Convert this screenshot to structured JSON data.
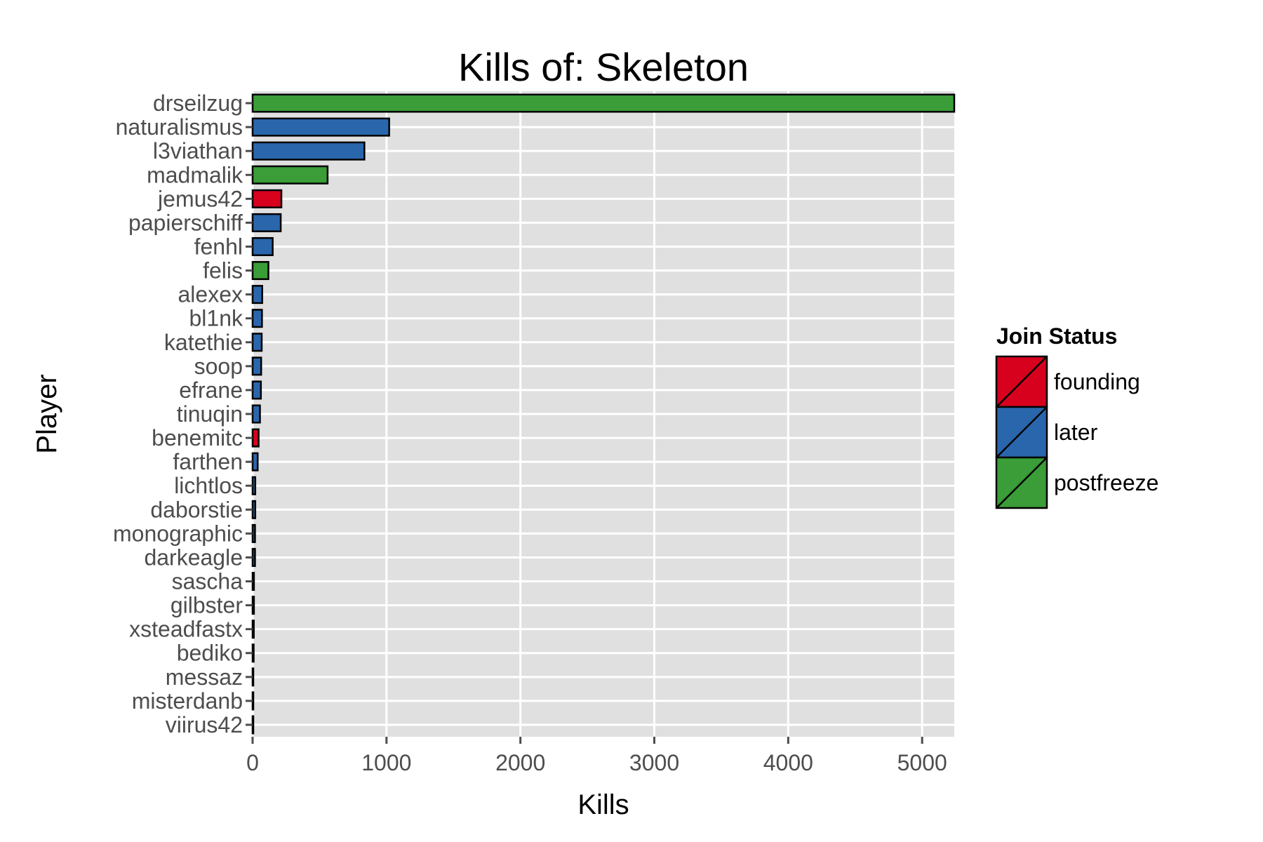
{
  "chart_data": {
    "type": "bar",
    "orientation": "horizontal",
    "title": "Kills of: Skeleton",
    "xlabel": "Kills",
    "ylabel": "Player",
    "xlim": [
      0,
      5240
    ],
    "x_ticks": [
      0,
      1000,
      2000,
      3000,
      4000,
      5000
    ],
    "grid": true,
    "legend": {
      "title": "Join Status",
      "position": "right",
      "entries": [
        {
          "name": "founding",
          "color": "#d7001d"
        },
        {
          "name": "later",
          "color": "#2a66ac"
        },
        {
          "name": "postfreeze",
          "color": "#3a9d37"
        }
      ]
    },
    "categories": [
      "drseilzug",
      "naturalismus",
      "l3viathan",
      "madmalik",
      "jemus42",
      "papierschiff",
      "fenhl",
      "felis",
      "alexex",
      "bl1nk",
      "katethie",
      "soop",
      "efrane",
      "tinuqin",
      "benemitc",
      "farthen",
      "lichtlos",
      "daborstie",
      "monographic",
      "darkeagle",
      "sascha",
      "gilbster",
      "xsteadfastx",
      "bediko",
      "messaz",
      "misterdanb",
      "viirus42"
    ],
    "values": [
      5240,
      1020,
      835,
      560,
      215,
      210,
      150,
      118,
      72,
      70,
      68,
      64,
      62,
      55,
      45,
      38,
      20,
      20,
      18,
      18,
      10,
      10,
      9,
      8,
      5,
      3,
      2
    ],
    "groups": [
      "postfreeze",
      "later",
      "later",
      "postfreeze",
      "founding",
      "later",
      "later",
      "postfreeze",
      "later",
      "later",
      "later",
      "later",
      "later",
      "later",
      "founding",
      "later",
      "later",
      "later",
      "later",
      "later",
      "later",
      "later",
      "later",
      "later",
      "later",
      "later",
      "later"
    ]
  }
}
